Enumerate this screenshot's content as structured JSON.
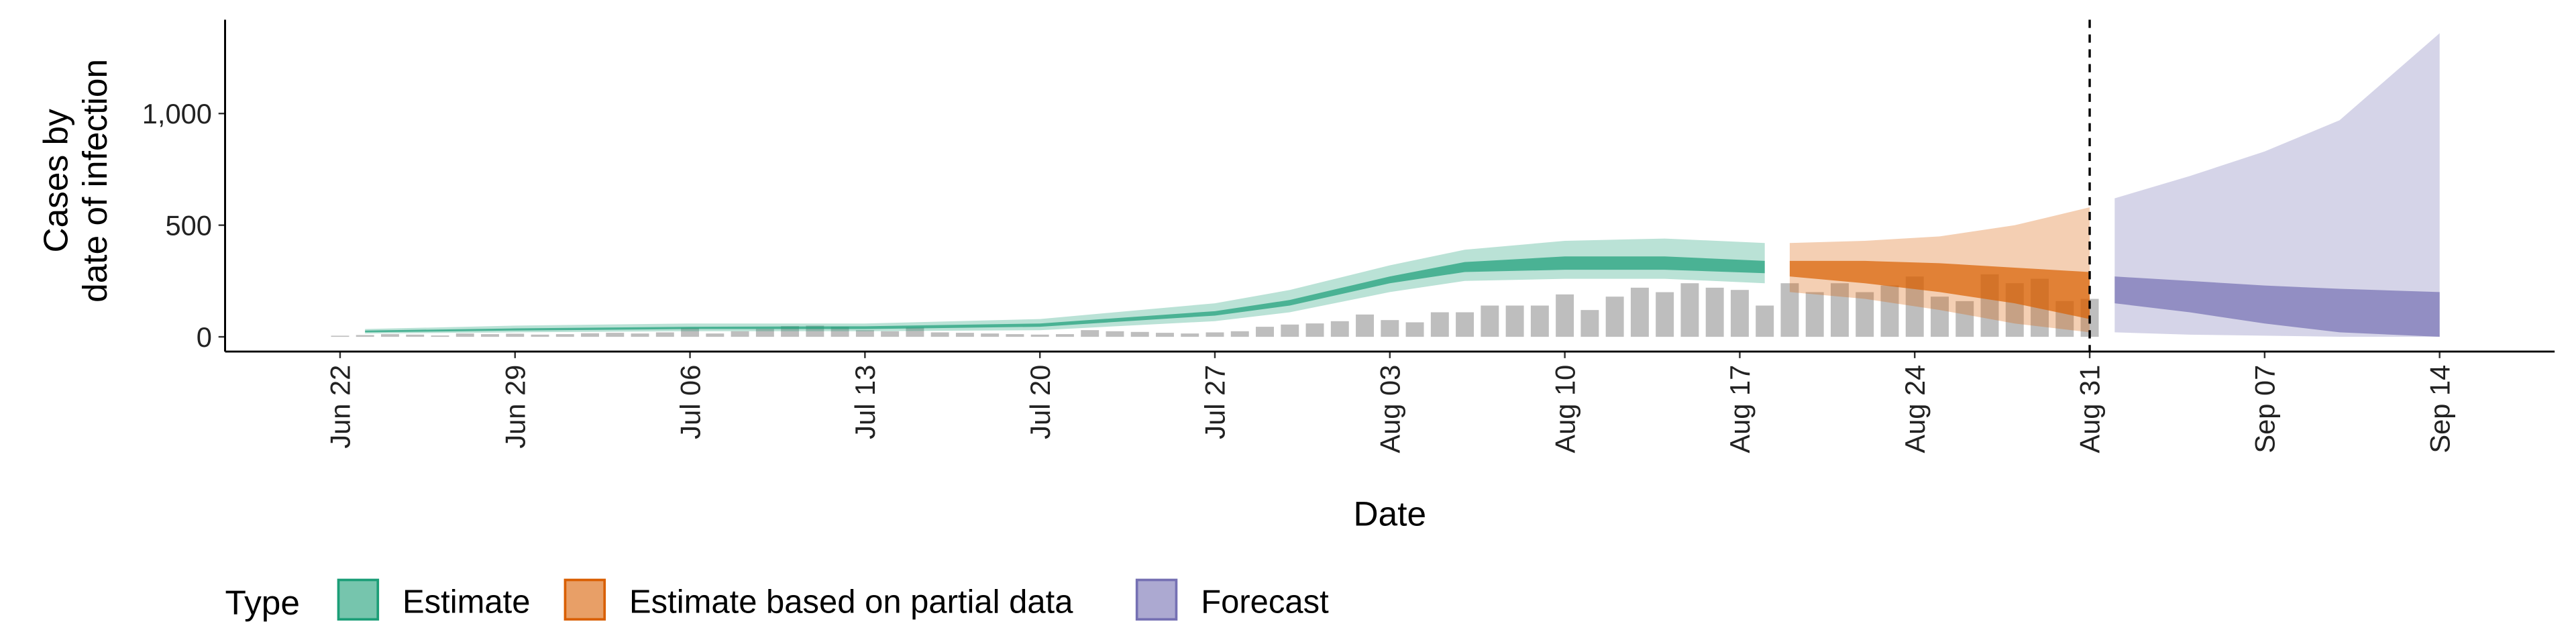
{
  "chart_data": {
    "type": "band",
    "x_label": "Date",
    "y_label": [
      "Cases by",
      "date of infection"
    ],
    "legend_title": "Type",
    "dates": [
      "Jun 22",
      "Jun 23",
      "Jun 24",
      "Jun 25",
      "Jun 26",
      "Jun 27",
      "Jun 28",
      "Jun 29",
      "Jun 30",
      "Jul 01",
      "Jul 02",
      "Jul 03",
      "Jul 04",
      "Jul 05",
      "Jul 06",
      "Jul 07",
      "Jul 08",
      "Jul 09",
      "Jul 10",
      "Jul 11",
      "Jul 12",
      "Jul 13",
      "Jul 14",
      "Jul 15",
      "Jul 16",
      "Jul 17",
      "Jul 18",
      "Jul 19",
      "Jul 20",
      "Jul 21",
      "Jul 22",
      "Jul 23",
      "Jul 24",
      "Jul 25",
      "Jul 26",
      "Jul 27",
      "Jul 28",
      "Jul 29",
      "Jul 30",
      "Jul 31",
      "Aug 01",
      "Aug 02",
      "Aug 03",
      "Aug 04",
      "Aug 05",
      "Aug 06",
      "Aug 07",
      "Aug 08",
      "Aug 09",
      "Aug 10",
      "Aug 11",
      "Aug 12",
      "Aug 13",
      "Aug 14",
      "Aug 15",
      "Aug 16",
      "Aug 17",
      "Aug 18",
      "Aug 19",
      "Aug 20",
      "Aug 21",
      "Aug 22",
      "Aug 23",
      "Aug 24",
      "Aug 25",
      "Aug 26",
      "Aug 27",
      "Aug 28",
      "Aug 29",
      "Aug 30",
      "Aug 31",
      "Sep 01",
      "Sep 02",
      "Sep 03",
      "Sep 04",
      "Sep 05",
      "Sep 06",
      "Sep 07",
      "Sep 08",
      "Sep 09",
      "Sep 10",
      "Sep 11",
      "Sep 12",
      "Sep 13",
      "Sep 14"
    ],
    "observed": [
      5,
      8,
      12,
      10,
      6,
      15,
      12,
      14,
      10,
      12,
      16,
      18,
      15,
      20,
      40,
      15,
      25,
      35,
      48,
      50,
      45,
      30,
      25,
      42,
      20,
      18,
      15,
      12,
      10,
      12,
      30,
      25,
      22,
      18,
      15,
      20,
      25,
      45,
      55,
      60,
      70,
      100,
      75,
      65,
      110,
      110,
      140,
      140,
      140,
      190,
      120,
      180,
      220,
      200,
      240,
      220,
      210,
      140,
      240,
      200,
      240,
      200,
      230,
      270,
      180,
      160,
      280,
      240,
      260,
      160,
      170,
      null,
      null,
      null,
      null,
      null,
      null,
      null,
      null,
      null,
      null,
      null,
      null,
      null,
      null
    ],
    "observed_color": "#bebebe",
    "series": [
      {
        "name": "Estimate",
        "color": "#1b9e77",
        "x": [
          "Jun 23",
          "Jun 29",
          "Jul 06",
          "Jul 13",
          "Jul 20",
          "Jul 27",
          "Jul 30",
          "Aug 03",
          "Aug 06",
          "Aug 10",
          "Aug 14",
          "Aug 18"
        ],
        "upper_90": [
          35,
          50,
          60,
          60,
          80,
          150,
          210,
          320,
          390,
          430,
          440,
          420
        ],
        "lower_90": [
          15,
          20,
          25,
          25,
          30,
          70,
          110,
          200,
          250,
          260,
          260,
          240
        ],
        "upper_50": [
          28,
          38,
          45,
          47,
          60,
          115,
          165,
          270,
          335,
          360,
          360,
          340
        ],
        "lower_50": [
          20,
          28,
          35,
          35,
          45,
          95,
          140,
          240,
          290,
          300,
          300,
          285
        ]
      },
      {
        "name": "Estimate based on partial data",
        "color": "#d95f02",
        "x": [
          "Aug 19",
          "Aug 22",
          "Aug 25",
          "Aug 28",
          "Aug 31"
        ],
        "upper_90": [
          420,
          430,
          450,
          500,
          580
        ],
        "lower_90": [
          200,
          170,
          120,
          60,
          20
        ],
        "upper_50": [
          340,
          340,
          330,
          310,
          290
        ],
        "lower_50": [
          270,
          240,
          200,
          150,
          80
        ]
      },
      {
        "name": "Forecast",
        "color": "#7570b3",
        "x": [
          "Sep 01",
          "Sep 04",
          "Sep 07",
          "Sep 10",
          "Sep 14"
        ],
        "upper_90": [
          620,
          720,
          830,
          970,
          1360
        ],
        "lower_90": [
          20,
          10,
          5,
          0,
          0
        ],
        "upper_50": [
          270,
          250,
          230,
          215,
          200
        ],
        "lower_50": [
          150,
          110,
          60,
          20,
          0
        ]
      }
    ],
    "vline": "Aug 31",
    "xticks": [
      "Jun 22",
      "Jun 29",
      "Jul 06",
      "Jul 13",
      "Jul 20",
      "Jul 27",
      "Aug 03",
      "Aug 10",
      "Aug 17",
      "Aug 24",
      "Aug 31",
      "Sep 07",
      "Sep 14"
    ],
    "ylim": [
      -66,
      1420
    ],
    "yticks": [
      0,
      500,
      {
        "value": 1000,
        "label": "1,000"
      }
    ]
  }
}
